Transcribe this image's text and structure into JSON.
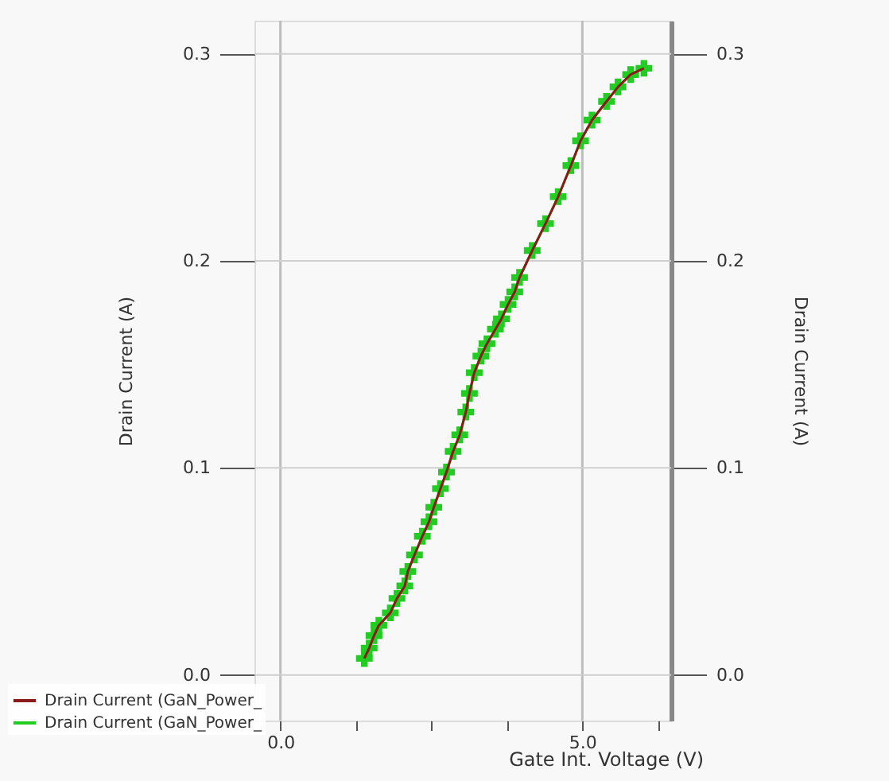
{
  "chart_data": {
    "type": "line",
    "xlabel": "Gate Int. Voltage (V)",
    "ylabel": "Drain Current (A)",
    "y2label": "Drain Current (A)",
    "x": [
      1.39,
      1.47,
      1.55,
      1.63,
      1.82,
      1.93,
      2.06,
      2.11,
      2.22,
      2.35,
      2.46,
      2.54,
      2.65,
      2.75,
      2.86,
      2.97,
      3.07,
      3.13,
      3.21,
      3.32,
      3.42,
      3.56,
      3.66,
      3.77,
      3.88,
      3.96,
      4.17,
      4.39,
      4.6,
      4.81,
      4.97,
      5.16,
      5.4,
      5.59,
      5.8,
      6.02
    ],
    "series": [
      {
        "name": "Drain Current (GaN_Power_",
        "color": "#8b1a1a",
        "marker": "none",
        "values": [
          0.008,
          0.013,
          0.019,
          0.024,
          0.03,
          0.037,
          0.043,
          0.05,
          0.058,
          0.067,
          0.074,
          0.081,
          0.09,
          0.098,
          0.108,
          0.116,
          0.127,
          0.136,
          0.146,
          0.154,
          0.16,
          0.167,
          0.172,
          0.179,
          0.185,
          0.192,
          0.205,
          0.218,
          0.231,
          0.246,
          0.258,
          0.268,
          0.277,
          0.284,
          0.29,
          0.293
        ]
      },
      {
        "name": "Drain Current (GaN_Power_",
        "color": "#22cc22",
        "marker": "cross",
        "values": [
          0.008,
          0.013,
          0.019,
          0.024,
          0.03,
          0.037,
          0.043,
          0.05,
          0.058,
          0.067,
          0.074,
          0.081,
          0.09,
          0.098,
          0.108,
          0.116,
          0.127,
          0.136,
          0.146,
          0.154,
          0.16,
          0.167,
          0.172,
          0.179,
          0.185,
          0.192,
          0.205,
          0.218,
          0.231,
          0.246,
          0.258,
          0.268,
          0.277,
          0.284,
          0.29,
          0.293
        ]
      }
    ],
    "xlim": [
      -0.43,
      6.47
    ],
    "xticks": [
      {
        "value": 0,
        "label": "0.0"
      },
      {
        "value": 1.25,
        "label": null
      },
      {
        "value": 2.5,
        "label": null
      },
      {
        "value": 3.75,
        "label": null
      },
      {
        "value": 5,
        "label": "5.0"
      },
      {
        "value": 6.25,
        "label": null
      }
    ],
    "ylim": [
      -0.022,
      0.316
    ],
    "yticks": [
      {
        "value": 0,
        "label": "0.0"
      },
      {
        "value": 0.1,
        "label": "0.1"
      },
      {
        "value": 0.2,
        "label": "0.2"
      },
      {
        "value": 0.3,
        "label": "0.3"
      }
    ],
    "y2lim": [
      -0.022,
      0.316
    ],
    "y2ticks": [
      {
        "value": 0,
        "label": "0.0"
      },
      {
        "value": 0.1,
        "label": "0.1"
      },
      {
        "value": 0.2,
        "label": "0.2"
      },
      {
        "value": 0.3,
        "label": "0.3"
      }
    ],
    "grid": true,
    "legend": "bottom left"
  }
}
